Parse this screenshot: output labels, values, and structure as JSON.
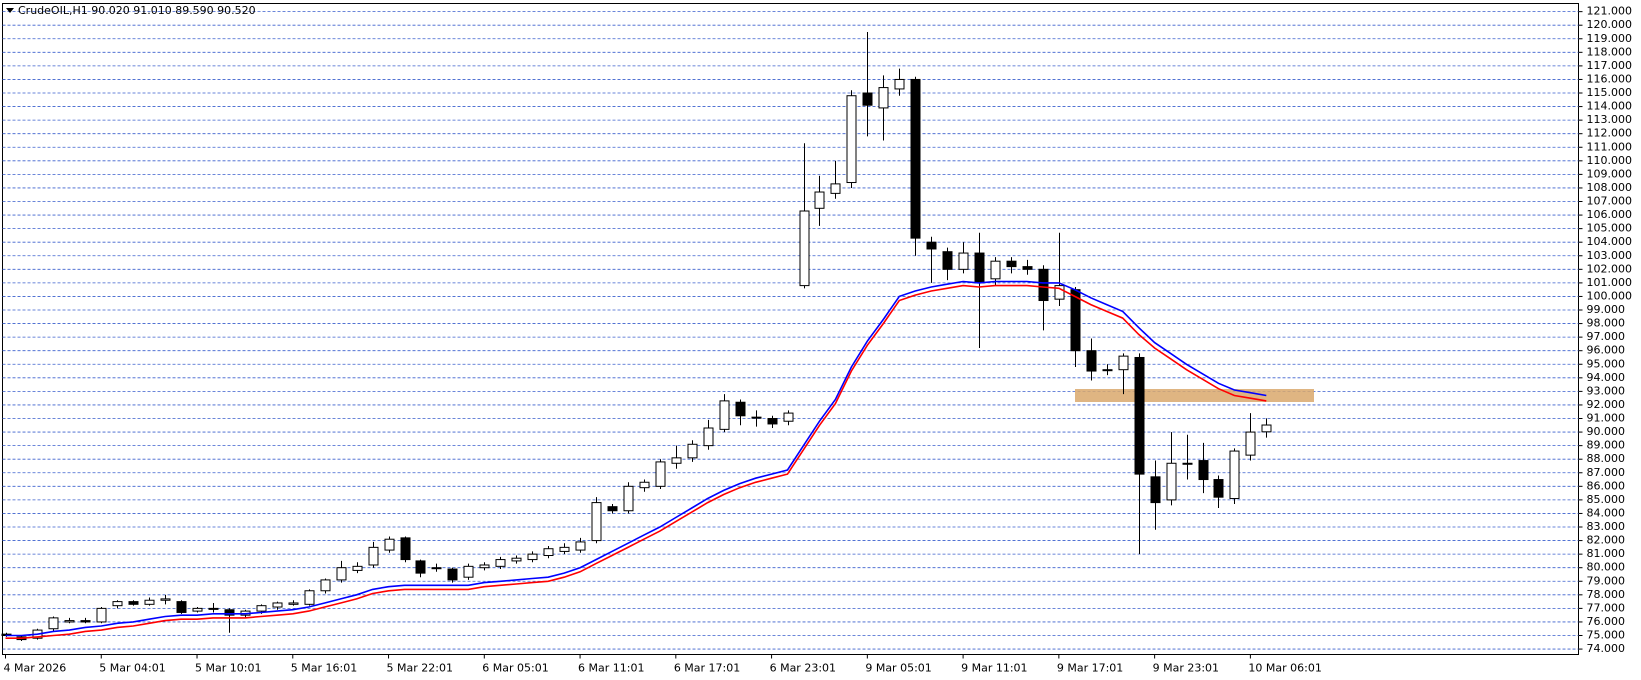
{
  "chart_data": {
    "type": "candlestick",
    "title": "CrudeOIL,H1  90.020 91.010 89.590 90.520",
    "categories": [
      "4 Mar 2026",
      null,
      null,
      null,
      null,
      null,
      "5 Mar 04:01",
      null,
      null,
      null,
      null,
      null,
      "5 Mar 10:01",
      null,
      null,
      null,
      null,
      null,
      "5 Mar 16:01",
      null,
      null,
      null,
      null,
      null,
      "5 Mar 22:01",
      null,
      null,
      null,
      null,
      null,
      "6 Mar 05:01",
      null,
      null,
      null,
      null,
      null,
      "6 Mar 11:01",
      null,
      null,
      null,
      null,
      null,
      "6 Mar 17:01",
      null,
      null,
      null,
      null,
      null,
      "6 Mar 23:01",
      null,
      null,
      null,
      null,
      null,
      "9 Mar 05:01",
      null,
      null,
      null,
      null,
      null,
      "9 Mar 11:01",
      null,
      null,
      null,
      null,
      null,
      "9 Mar 17:01",
      null,
      null,
      null,
      null,
      null,
      "9 Mar 23:01",
      null,
      null,
      null,
      null,
      null,
      "10 Mar 06:01",
      null
    ],
    "open": [
      75.1,
      74.9,
      74.8,
      75.5,
      76.0,
      76.1,
      76.0,
      77.2,
      77.5,
      77.3,
      77.6,
      77.5,
      76.8,
      77.0,
      76.9,
      76.5,
      76.8,
      77.1,
      77.3,
      77.3,
      78.3,
      79.1,
      79.8,
      80.2,
      81.3,
      82.2,
      80.5,
      80.0,
      79.9,
      79.3,
      80.0,
      80.1,
      80.5,
      80.6,
      80.9,
      81.2,
      81.3,
      82.0,
      84.5,
      84.2,
      85.9,
      86.0,
      87.7,
      88.1,
      89.0,
      90.2,
      92.2,
      91.1,
      91.0,
      90.8,
      100.8,
      106.5,
      107.6,
      108.4,
      115.0,
      113.9,
      115.3,
      116.0,
      104.0,
      103.3,
      102.0,
      103.2,
      101.3,
      102.6,
      102.2,
      102.0,
      99.8,
      100.5,
      96.0,
      94.6,
      94.6,
      95.5,
      86.7,
      85.0,
      87.7,
      87.9,
      86.5,
      85.1,
      88.3,
      90.02
    ],
    "high": [
      75.2,
      75.0,
      75.5,
      76.4,
      76.3,
      76.3,
      77.1,
      77.6,
      77.6,
      77.8,
      78.0,
      77.6,
      77.1,
      77.4,
      77.0,
      76.9,
      77.3,
      77.5,
      77.6,
      78.4,
      79.2,
      80.5,
      80.4,
      81.9,
      82.3,
      82.3,
      80.6,
      80.3,
      80.0,
      80.3,
      80.4,
      80.8,
      80.9,
      81.2,
      81.6,
      81.8,
      82.2,
      85.2,
      84.7,
      86.3,
      86.5,
      88.0,
      89.0,
      89.4,
      90.9,
      92.8,
      92.4,
      91.6,
      91.2,
      91.6,
      111.3,
      108.9,
      110.0,
      115.2,
      119.5,
      116.3,
      116.8,
      116.2,
      104.4,
      103.6,
      104.0,
      104.7,
      102.9,
      102.9,
      102.7,
      102.3,
      104.7,
      100.7,
      96.9,
      95.0,
      95.8,
      95.8,
      87.9,
      90.0,
      89.8,
      89.2,
      86.8,
      88.8,
      91.4,
      91.01
    ],
    "low": [
      74.9,
      74.6,
      74.7,
      75.3,
      75.9,
      75.9,
      75.9,
      77.0,
      77.2,
      77.2,
      77.3,
      76.6,
      76.7,
      76.7,
      75.2,
      76.3,
      76.6,
      76.9,
      77.2,
      77.2,
      78.1,
      78.9,
      79.6,
      80.0,
      81.1,
      80.4,
      79.3,
      79.7,
      78.9,
      79.1,
      79.8,
      79.9,
      80.3,
      80.4,
      80.7,
      81.0,
      81.1,
      81.8,
      84.0,
      84.0,
      85.6,
      85.8,
      87.3,
      87.8,
      88.7,
      90.0,
      90.5,
      90.4,
      90.3,
      90.5,
      100.6,
      105.2,
      107.2,
      108.0,
      111.8,
      111.5,
      114.8,
      103.0,
      101.0,
      101.2,
      101.7,
      96.2,
      100.8,
      101.7,
      101.6,
      97.5,
      99.3,
      94.8,
      93.8,
      94.2,
      92.8,
      81.0,
      82.8,
      84.6,
      86.5,
      85.5,
      84.4,
      84.7,
      87.9,
      89.59
    ],
    "close": [
      75.0,
      74.7,
      75.4,
      76.3,
      76.1,
      76.0,
      77.0,
      77.5,
      77.3,
      77.6,
      77.7,
      76.7,
      77.0,
      77.0,
      76.5,
      76.8,
      77.2,
      77.4,
      77.4,
      78.3,
      79.1,
      80.0,
      80.1,
      81.5,
      82.1,
      80.6,
      79.6,
      80.0,
      79.1,
      80.1,
      80.2,
      80.6,
      80.7,
      81.0,
      81.4,
      81.5,
      81.9,
      84.8,
      84.2,
      86.0,
      86.3,
      87.8,
      88.1,
      89.1,
      90.3,
      92.3,
      91.2,
      91.1,
      90.6,
      91.4,
      106.3,
      107.7,
      108.3,
      114.8,
      114.1,
      115.4,
      116.0,
      104.3,
      103.5,
      102.0,
      103.2,
      101.0,
      102.6,
      102.2,
      102.0,
      99.7,
      100.8,
      96.0,
      94.5,
      94.6,
      95.6,
      86.9,
      84.8,
      87.7,
      87.7,
      86.5,
      85.2,
      88.6,
      90.0,
      90.52
    ],
    "overlays": [
      {
        "color": "#0000ff",
        "values": [
          75.0,
          75.0,
          75.1,
          75.3,
          75.4,
          75.6,
          75.7,
          75.9,
          76.0,
          76.2,
          76.4,
          76.5,
          76.5,
          76.6,
          76.6,
          76.6,
          76.7,
          76.8,
          76.9,
          77.1,
          77.4,
          77.7,
          78.0,
          78.4,
          78.6,
          78.7,
          78.7,
          78.7,
          78.7,
          78.7,
          78.9,
          79.0,
          79.1,
          79.2,
          79.3,
          79.6,
          80.0,
          80.6,
          81.2,
          81.8,
          82.4,
          83.0,
          83.7,
          84.4,
          85.1,
          85.7,
          86.2,
          86.6,
          86.9,
          87.2,
          89.0,
          90.8,
          92.4,
          94.8,
          96.7,
          98.3,
          100.0,
          100.4,
          100.7,
          100.9,
          101.1,
          101.0,
          101.1,
          101.1,
          101.1,
          101.0,
          101.0,
          100.5,
          99.9,
          99.4,
          98.9,
          97.7,
          96.6,
          95.8,
          95.0,
          94.3,
          93.6,
          93.1,
          92.9,
          92.7
        ]
      },
      {
        "color": "#ff0000",
        "values": [
          74.8,
          74.8,
          74.9,
          75.0,
          75.1,
          75.3,
          75.4,
          75.6,
          75.7,
          75.9,
          76.1,
          76.2,
          76.2,
          76.3,
          76.3,
          76.3,
          76.4,
          76.5,
          76.6,
          76.8,
          77.1,
          77.4,
          77.7,
          78.1,
          78.3,
          78.4,
          78.4,
          78.4,
          78.4,
          78.4,
          78.6,
          78.7,
          78.8,
          78.9,
          79.0,
          79.3,
          79.7,
          80.3,
          80.9,
          81.5,
          82.1,
          82.7,
          83.4,
          84.1,
          84.8,
          85.4,
          85.9,
          86.3,
          86.6,
          86.9,
          88.7,
          90.5,
          92.1,
          94.5,
          96.4,
          98.0,
          99.7,
          100.1,
          100.4,
          100.6,
          100.8,
          100.7,
          100.8,
          100.8,
          100.8,
          100.7,
          100.6,
          100.0,
          99.4,
          98.9,
          98.4,
          97.2,
          96.2,
          95.4,
          94.6,
          93.9,
          93.2,
          92.7,
          92.5,
          92.3
        ]
      }
    ],
    "bull_color": "#ffffff",
    "bear_color": "#000000",
    "ylim": [
      73.6,
      121.6
    ],
    "yticks": [
      {
        "value": 74,
        "label": "74.000"
      },
      {
        "value": 75,
        "label": "75.000"
      },
      {
        "value": 76,
        "label": "76.000"
      },
      {
        "value": 77,
        "label": "77.000"
      },
      {
        "value": 78,
        "label": "78.000"
      },
      {
        "value": 79,
        "label": "79.000"
      },
      {
        "value": 80,
        "label": "80.000"
      },
      {
        "value": 81,
        "label": "81.000"
      },
      {
        "value": 82,
        "label": "82.000"
      },
      {
        "value": 83,
        "label": "83.000"
      },
      {
        "value": 84,
        "label": "84.000"
      },
      {
        "value": 85,
        "label": "85.000"
      },
      {
        "value": 86,
        "label": "86.000"
      },
      {
        "value": 87,
        "label": "87.000"
      },
      {
        "value": 88,
        "label": "88.000"
      },
      {
        "value": 89,
        "label": "89.000"
      },
      {
        "value": 90,
        "label": "90.000"
      },
      {
        "value": 91,
        "label": "91.000"
      },
      {
        "value": 92,
        "label": "92.000"
      },
      {
        "value": 93,
        "label": "93.000"
      },
      {
        "value": 94,
        "label": "94.000"
      },
      {
        "value": 95,
        "label": "95.000"
      },
      {
        "value": 96,
        "label": "96.000"
      },
      {
        "value": 97,
        "label": "97.000"
      },
      {
        "value": 98,
        "label": "98.000"
      },
      {
        "value": 99,
        "label": "99.000"
      },
      {
        "value": 100,
        "label": "100.000"
      },
      {
        "value": 101,
        "label": "101.000"
      },
      {
        "value": 102,
        "label": "102.000"
      },
      {
        "value": 103,
        "label": "103.000"
      },
      {
        "value": 104,
        "label": "104.000"
      },
      {
        "value": 105,
        "label": "105.000"
      },
      {
        "value": 106,
        "label": "106.000"
      },
      {
        "value": 107,
        "label": "107.000"
      },
      {
        "value": 108,
        "label": "108.000"
      },
      {
        "value": 109,
        "label": "109.000"
      },
      {
        "value": 110,
        "label": "110.000"
      },
      {
        "value": 111,
        "label": "111.000"
      },
      {
        "value": 112,
        "label": "112.000"
      },
      {
        "value": 113,
        "label": "113.000"
      },
      {
        "value": 114,
        "label": "114.000"
      },
      {
        "value": 115,
        "label": "115.000"
      },
      {
        "value": 116,
        "label": "116.000"
      },
      {
        "value": 117,
        "label": "117.000"
      },
      {
        "value": 118,
        "label": "118.000"
      },
      {
        "value": 119,
        "label": "119.000"
      },
      {
        "value": 120,
        "label": "120.000"
      },
      {
        "value": 121,
        "label": "121.000"
      }
    ],
    "grid": true
  }
}
